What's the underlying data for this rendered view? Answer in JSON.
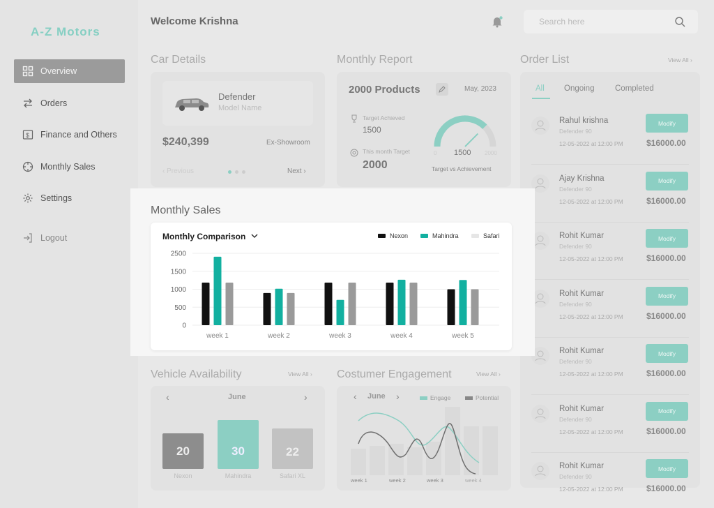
{
  "app": {
    "logo": "A-Z Motors"
  },
  "sidebar": {
    "items": [
      {
        "label": "Overview",
        "icon": "grid-icon",
        "active": true
      },
      {
        "label": "Orders",
        "icon": "swap-arrows-icon"
      },
      {
        "label": "Finance and Others",
        "icon": "dollar-card-icon"
      },
      {
        "label": "Monthly Sales",
        "icon": "crosshair-icon"
      },
      {
        "label": "Settings",
        "icon": "gear-icon"
      },
      {
        "label": "Logout",
        "icon": "logout-icon"
      }
    ]
  },
  "header": {
    "welcome": "Welcome Krishna",
    "search_placeholder": "Search here"
  },
  "car_details": {
    "title": "Car Details",
    "car_name": "Defender",
    "car_sub": "Model Name",
    "price": "$240,399",
    "price_note": "Ex-Showroom",
    "prev_label": "Previous",
    "next_label": "Next"
  },
  "monthly_report": {
    "title": "Monthly Report",
    "products": "2000 Products",
    "month": "May, 2023",
    "achieved_label": "Target Achieved",
    "achieved_value": "1500",
    "target_label": "This month Target",
    "target_value": "2000",
    "gauge_value": "1500",
    "gauge_min": "0",
    "gauge_max": "2000",
    "gauge_fraction": 0.75,
    "gauge_caption": "Target vs Achievement"
  },
  "order_list": {
    "title": "Order List",
    "view_all": "View All",
    "tabs": [
      "All",
      "Ongoing",
      "Completed"
    ],
    "modify_label": "Modify",
    "rows": [
      {
        "name": "Rahul krishna",
        "model": "Defender 90",
        "date": "12-05-2022 at 12:00 PM",
        "amount": "$16000.00"
      },
      {
        "name": "Ajay Krishna",
        "model": "Defender 90",
        "date": "12-05-2022 at 12:00 PM",
        "amount": "$16000.00"
      },
      {
        "name": "Rohit Kumar",
        "model": "Defender 90",
        "date": "12-05-2022 at 12:00 PM",
        "amount": "$16000.00"
      },
      {
        "name": "Rohit Kumar",
        "model": "Defender 90",
        "date": "12-05-2022 at 12:00 PM",
        "amount": "$16000.00"
      },
      {
        "name": "Rohit Kumar",
        "model": "Defender 90",
        "date": "12-05-2022 at 12:00 PM",
        "amount": "$16000.00"
      },
      {
        "name": "Rohit Kumar",
        "model": "Defender 90",
        "date": "12-05-2022 at 12:00 PM",
        "amount": "$16000.00"
      },
      {
        "name": "Rohit Kumar",
        "model": "Defender 90",
        "date": "12-05-2022 at 12:00 PM",
        "amount": "$16000.00"
      }
    ]
  },
  "monthly_sales": {
    "title": "Monthly Sales",
    "dropdown": "Monthly Comparison"
  },
  "vehicle_availability": {
    "title": "Vehicle Availability",
    "view_all": "View All",
    "month": "June",
    "vehicles": [
      {
        "count": "20",
        "name": "Nexon"
      },
      {
        "count": "30",
        "name": "Mahindra"
      },
      {
        "count": "22",
        "name": "Safari XL"
      }
    ]
  },
  "engagement": {
    "title": "Costumer Engagement",
    "view_all": "View All",
    "month": "June",
    "legend": [
      "Engage",
      "Potential"
    ],
    "weeks": [
      "week 1",
      "week 2",
      "week 3",
      "week 4"
    ]
  },
  "colors": {
    "teal": "#12b0a0",
    "black": "#111111",
    "gray": "#9a9a9a",
    "faded_teal": "#8ccfc3"
  },
  "chart_data": {
    "type": "bar",
    "categories": [
      "week 1",
      "week 2",
      "week 3",
      "week 4",
      "week 5"
    ],
    "series": [
      {
        "name": "Nexon",
        "color": "#111111",
        "values": [
          1480,
          1120,
          1480,
          1480,
          1250
        ]
      },
      {
        "name": "Mahindra",
        "color": "#12b0a0",
        "values": [
          2380,
          1270,
          880,
          1580,
          1570
        ]
      },
      {
        "name": "Safari",
        "color": "#9a9a9a",
        "values": [
          1480,
          1120,
          1480,
          1480,
          1250
        ]
      }
    ],
    "legend_labels": [
      "Nexon",
      "Mahindra",
      "Safari"
    ],
    "yticks": [
      "0",
      "500",
      "1000",
      "1500",
      "2500"
    ],
    "ylim": [
      0,
      2500
    ],
    "legend_position": "top-right",
    "grid": true
  }
}
